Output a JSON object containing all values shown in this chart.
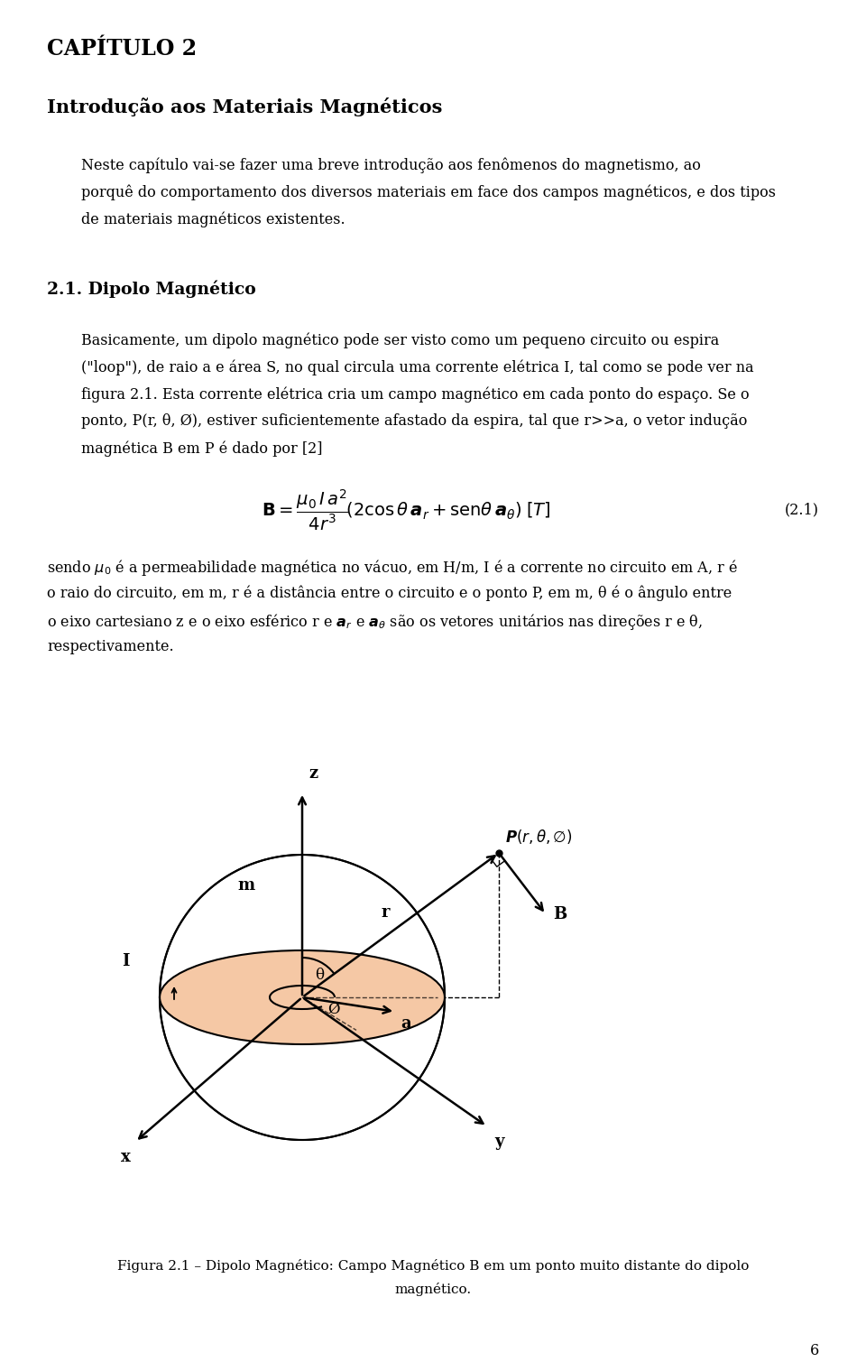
{
  "chapter_title": "CAPÍTULO 2",
  "section_title": "Introdução aos Materiais Magnéticos",
  "para1_lines": [
    "Neste capítulo vai-se fazer uma breve introdução aos fenômenos do magnetismo, ao",
    "porquê do comportamento dos diversos materiais em face dos campos magnéticos, e dos tipos",
    "de materiais magnéticos existentes."
  ],
  "section2_title": "2.1. Dipolo Magnético",
  "para2_lines": [
    "Basicamente, um dipolo magnético pode ser visto como um pequeno circuito ou espira",
    "(\"loop\"), de raio a e área S, no qual circula uma corrente elétrica I, tal como se pode ver na",
    "figura 2.1. Esta corrente elétrica cria um campo magnético em cada ponto do espaço. Se o",
    "ponto, P(r, θ, Ø), estiver suficientemente afastado da espira, tal que r>>a, o vetor indução",
    "magnética B em P é dado por [2]"
  ],
  "eq_number": "(2.1)",
  "para3_lines": [
    "sendo μ₀ é a permeabilidade magnética no vácuo, em H/m, I é a corrente no circuito em A, r é",
    "o raio do circuito, em m, r é a distância entre o circuito e o ponto P, em m, θ é o ângulo entre",
    "o eixo cartesiano z e o eixo esférico r e ar e aθ são os vetores unitários nas direções r e θ,",
    "respectivamente."
  ],
  "cap_line1": "Figura 2.1 – Dipolo Magnético: Campo Magnético B em um ponto muito distante do dipolo",
  "cap_line2": "magnético.",
  "page_number": "6",
  "bg_color": "#ffffff",
  "disk_color": "#f5c8a5",
  "text_color": "#000000"
}
